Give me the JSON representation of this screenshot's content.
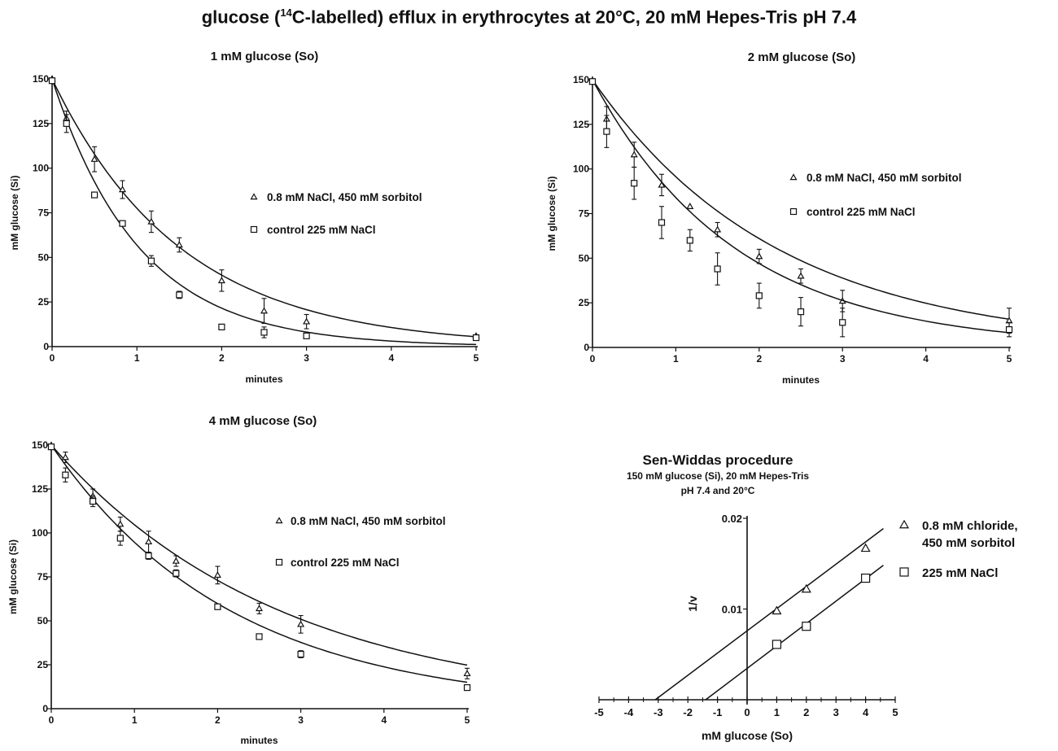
{
  "page_title": {
    "before": "glucose (",
    "sup": "14",
    "after": "C-labelled) efflux in erythrocytes at  20°C,  20 mM  Hepes-Tris pH 7.4"
  },
  "chart_data": [
    {
      "type": "scatter",
      "title": "1 mM glucose (So)",
      "xlabel": "minutes",
      "ylabel": "mM glucose (Si)",
      "xlim": [
        0,
        5
      ],
      "ylim": [
        0,
        150
      ],
      "xticks": [
        0,
        1,
        2,
        3,
        4,
        5
      ],
      "yticks": [
        0,
        25,
        50,
        75,
        100,
        125,
        150
      ],
      "grid": false,
      "legend_position": "right",
      "series": [
        {
          "name": "0.8 mM  NaCl,  450 mM  sorbitol",
          "marker": "triangle",
          "points": [
            {
              "x": 0,
              "y": 150,
              "err": 0
            },
            {
              "x": 0.17,
              "y": 128,
              "err": 4
            },
            {
              "x": 0.5,
              "y": 105,
              "err": 7
            },
            {
              "x": 0.83,
              "y": 88,
              "err": 5
            },
            {
              "x": 1.17,
              "y": 70,
              "err": 6
            },
            {
              "x": 1.5,
              "y": 57,
              "err": 4
            },
            {
              "x": 2,
              "y": 37,
              "err": 6
            },
            {
              "x": 2.5,
              "y": 20,
              "err": 7
            },
            {
              "x": 3,
              "y": 14,
              "err": 4
            },
            {
              "x": 5,
              "y": 6,
              "err": 0
            }
          ],
          "fit": {
            "model": "exponential",
            "y0": 150,
            "k": 0.66
          }
        },
        {
          "name": "control 225 mM NaCl",
          "marker": "square",
          "points": [
            {
              "x": 0,
              "y": 149,
              "err": 0
            },
            {
              "x": 0.17,
              "y": 125,
              "err": 5
            },
            {
              "x": 0.5,
              "y": 85,
              "err": 0
            },
            {
              "x": 0.83,
              "y": 69,
              "err": 0
            },
            {
              "x": 1.17,
              "y": 48,
              "err": 3
            },
            {
              "x": 1.5,
              "y": 29,
              "err": 2
            },
            {
              "x": 2,
              "y": 11,
              "err": 0
            },
            {
              "x": 2.5,
              "y": 8,
              "err": 3
            },
            {
              "x": 3,
              "y": 6,
              "err": 0
            },
            {
              "x": 5,
              "y": 5,
              "err": 0
            }
          ],
          "fit": {
            "model": "exponential",
            "y0": 150,
            "k": 0.97
          }
        }
      ]
    },
    {
      "type": "scatter",
      "title": "2 mM glucose (So)",
      "xlabel": "minutes",
      "ylabel": "mM glucose (Si)",
      "xlim": [
        0,
        5
      ],
      "ylim": [
        0,
        150
      ],
      "xticks": [
        0,
        1,
        2,
        3,
        4,
        5
      ],
      "yticks": [
        0,
        25,
        50,
        75,
        100,
        125,
        150
      ],
      "grid": false,
      "legend_position": "right",
      "series": [
        {
          "name": "0.8 mM  NaCl,  450 mM  sorbitol",
          "marker": "triangle",
          "points": [
            {
              "x": 0,
              "y": 149,
              "err": 0
            },
            {
              "x": 0.17,
              "y": 128,
              "err": 7
            },
            {
              "x": 0.5,
              "y": 108,
              "err": 7
            },
            {
              "x": 0.83,
              "y": 91,
              "err": 6
            },
            {
              "x": 1.17,
              "y": 79,
              "err": 0
            },
            {
              "x": 1.5,
              "y": 66,
              "err": 4
            },
            {
              "x": 2,
              "y": 51,
              "err": 4
            },
            {
              "x": 2.5,
              "y": 40,
              "err": 4
            },
            {
              "x": 3,
              "y": 26,
              "err": 6
            },
            {
              "x": 5,
              "y": 15,
              "err": 7
            }
          ],
          "fit": {
            "model": "exponential",
            "y0": 150,
            "k": 0.45
          }
        },
        {
          "name": "control 225 mM NaCl",
          "marker": "square",
          "points": [
            {
              "x": 0,
              "y": 149,
              "err": 0
            },
            {
              "x": 0.17,
              "y": 121,
              "err": 9
            },
            {
              "x": 0.5,
              "y": 92,
              "err": 9
            },
            {
              "x": 0.83,
              "y": 70,
              "err": 9
            },
            {
              "x": 1.17,
              "y": 60,
              "err": 6
            },
            {
              "x": 1.5,
              "y": 44,
              "err": 9
            },
            {
              "x": 2,
              "y": 29,
              "err": 7
            },
            {
              "x": 2.5,
              "y": 20,
              "err": 8
            },
            {
              "x": 3,
              "y": 14,
              "err": 8
            },
            {
              "x": 5,
              "y": 10,
              "err": 4
            }
          ],
          "fit": {
            "model": "exponential",
            "y0": 150,
            "k": 0.58
          }
        }
      ]
    },
    {
      "type": "scatter",
      "title": "4 mM glucose (So)",
      "xlabel": "minutes",
      "ylabel": "mM glucose (Si)",
      "xlim": [
        0,
        5
      ],
      "ylim": [
        0,
        150
      ],
      "xticks": [
        0,
        1,
        2,
        3,
        4,
        5
      ],
      "yticks": [
        0,
        25,
        50,
        75,
        100,
        125,
        150
      ],
      "grid": false,
      "legend_position": "right",
      "series": [
        {
          "name": "0.8 mM  NaCl,  450 mM  sorbitol",
          "marker": "triangle",
          "points": [
            {
              "x": 0,
              "y": 149,
              "err": 0
            },
            {
              "x": 0.17,
              "y": 143,
              "err": 3
            },
            {
              "x": 0.5,
              "y": 121,
              "err": 4
            },
            {
              "x": 0.83,
              "y": 105,
              "err": 4
            },
            {
              "x": 1.17,
              "y": 95,
              "err": 6
            },
            {
              "x": 1.5,
              "y": 84,
              "err": 3
            },
            {
              "x": 2,
              "y": 76,
              "err": 5
            },
            {
              "x": 2.5,
              "y": 57,
              "err": 3
            },
            {
              "x": 3,
              "y": 48,
              "err": 5
            },
            {
              "x": 5,
              "y": 20,
              "err": 3
            }
          ],
          "fit": {
            "model": "exponential",
            "y0": 150,
            "k": 0.36
          }
        },
        {
          "name": "control 225 mM NaCl",
          "marker": "square",
          "points": [
            {
              "x": 0,
              "y": 149,
              "err": 0
            },
            {
              "x": 0.17,
              "y": 133,
              "err": 4
            },
            {
              "x": 0.5,
              "y": 118,
              "err": 3
            },
            {
              "x": 0.83,
              "y": 97,
              "err": 4
            },
            {
              "x": 1.17,
              "y": 87,
              "err": 2
            },
            {
              "x": 1.5,
              "y": 77,
              "err": 2
            },
            {
              "x": 2,
              "y": 58,
              "err": 0
            },
            {
              "x": 2.5,
              "y": 41,
              "err": 0
            },
            {
              "x": 3,
              "y": 31,
              "err": 2
            },
            {
              "x": 5,
              "y": 12,
              "err": 0
            }
          ],
          "fit": {
            "model": "exponential",
            "y0": 150,
            "k": 0.46
          }
        }
      ]
    },
    {
      "type": "scatter",
      "title": "Sen-Widdas procedure",
      "subtitle": [
        "150 mM glucose (Si),  20 mM Hepes-Tris",
        "pH 7.4 and 20°C"
      ],
      "xlabel": "mM glucose (So)",
      "ylabel": "1/v",
      "xlim": [
        -5,
        5
      ],
      "ylim": [
        0,
        0.02
      ],
      "xticks": [
        -5,
        -4,
        -3,
        -2,
        -1,
        0,
        1,
        2,
        3,
        4,
        5
      ],
      "yticks": [
        0.01,
        0.02
      ],
      "ytick_labels": [
        "0.01",
        "0.02"
      ],
      "grid": false,
      "legend_position": "right",
      "series": [
        {
          "name": [
            "0.8 mM  chloride,",
            "450 mM  sorbitol"
          ],
          "marker": "triangle",
          "points": [
            {
              "x": 1,
              "y": 0.0098
            },
            {
              "x": 2,
              "y": 0.0122
            },
            {
              "x": 4,
              "y": 0.0167
            }
          ],
          "fit": {
            "model": "linear",
            "x_intercept": -3.1,
            "slope": 0.00245
          }
        },
        {
          "name": "225 mM NaCl",
          "marker": "square",
          "points": [
            {
              "x": 1,
              "y": 0.0061
            },
            {
              "x": 2,
              "y": 0.0081
            },
            {
              "x": 4,
              "y": 0.0134
            }
          ],
          "fit": {
            "model": "linear",
            "x_intercept": -1.4,
            "slope": 0.00247
          }
        }
      ]
    }
  ]
}
